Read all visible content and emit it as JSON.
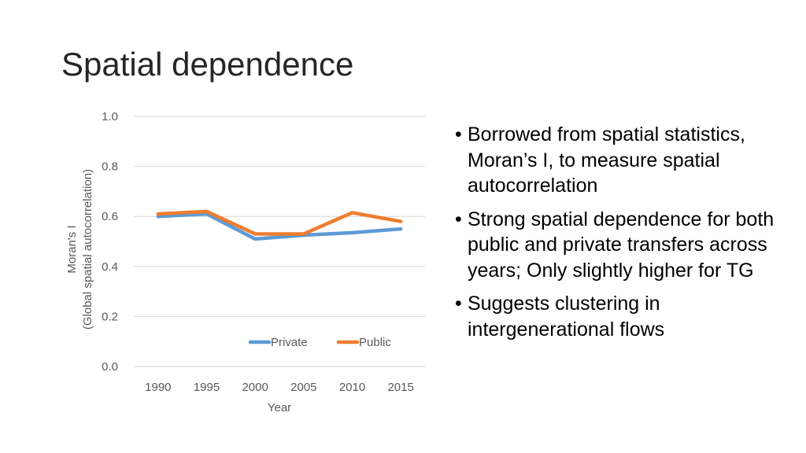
{
  "slide": {
    "title": "Spatial dependence"
  },
  "bullets": [
    "Borrowed from spatial statistics, Moran’s I, to measure spatial autocorrelation",
    "Strong spatial dependence for both public and private transfers across years; Only slightly higher for TG",
    "Suggests clustering in intergenerational flows"
  ],
  "chart_data": {
    "type": "line",
    "x": [
      1990,
      1995,
      2000,
      2005,
      2010,
      2015
    ],
    "x_tick_labels": [
      "1990",
      "1995",
      "2000",
      "2005",
      "2010",
      "2015"
    ],
    "series": [
      {
        "name": "Private",
        "color": "#5B9BD5",
        "values": [
          0.6,
          0.61,
          0.51,
          0.525,
          0.535,
          0.55
        ]
      },
      {
        "name": "Public",
        "color": "#ED7D31",
        "values": [
          0.61,
          0.62,
          0.53,
          0.53,
          0.615,
          0.58
        ]
      }
    ],
    "xlabel": "Year",
    "ylabel_lines": [
      "Moran's I",
      "(Global spatial autocorrelation)"
    ],
    "ylim": [
      0,
      1.0
    ],
    "y_ticks": [
      0.0,
      0.2,
      0.4,
      0.6,
      0.8,
      1.0
    ],
    "y_tick_labels": [
      "0.0",
      "0.2",
      "0.4",
      "0.6",
      "0.8",
      "1.0"
    ],
    "grid": true,
    "legend_position": "bottom-inside",
    "gridline_color": "#D9D9D9",
    "text_color": "#595959"
  }
}
